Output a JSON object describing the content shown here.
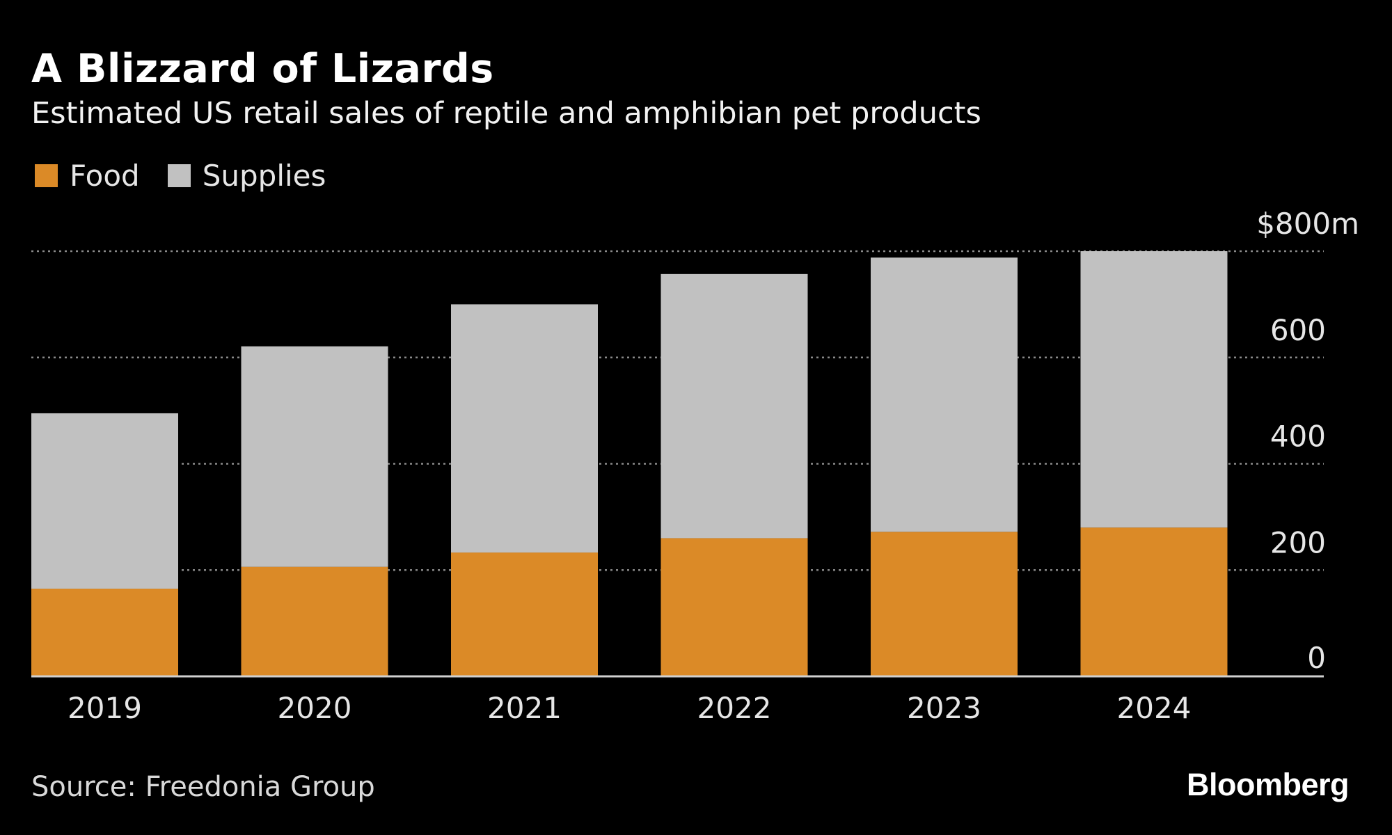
{
  "header": {
    "title": "A Blizzard of Lizards",
    "subtitle": "Estimated US retail sales of reptile and amphibian pet products"
  },
  "legend": {
    "food_label": "Food",
    "supplies_label": "Supplies"
  },
  "colors": {
    "food": "#db8a27",
    "supplies": "#c1c1c1",
    "background": "#000000",
    "gridline": "#8a8a8a",
    "text": "#e6e6e6"
  },
  "chart_data": {
    "type": "bar",
    "stacked": true,
    "categories": [
      "2019",
      "2020",
      "2021",
      "2022",
      "2023",
      "2024"
    ],
    "series": [
      {
        "name": "Food",
        "values": [
          165,
          206,
          233,
          260,
          272,
          280
        ]
      },
      {
        "name": "Supplies",
        "values": [
          330,
          415,
          467,
          497,
          516,
          520
        ]
      }
    ],
    "yticks": [
      {
        "value": 800,
        "label": "$800m"
      },
      {
        "value": 600,
        "label": "600"
      },
      {
        "value": 400,
        "label": "400"
      },
      {
        "value": 200,
        "label": "200"
      },
      {
        "value": 0,
        "label": "0"
      }
    ],
    "ylim": [
      0,
      800
    ],
    "grid": true,
    "legend_position": "top-left"
  },
  "footer": {
    "source": "Source: Freedonia Group",
    "brand": "Bloomberg"
  }
}
